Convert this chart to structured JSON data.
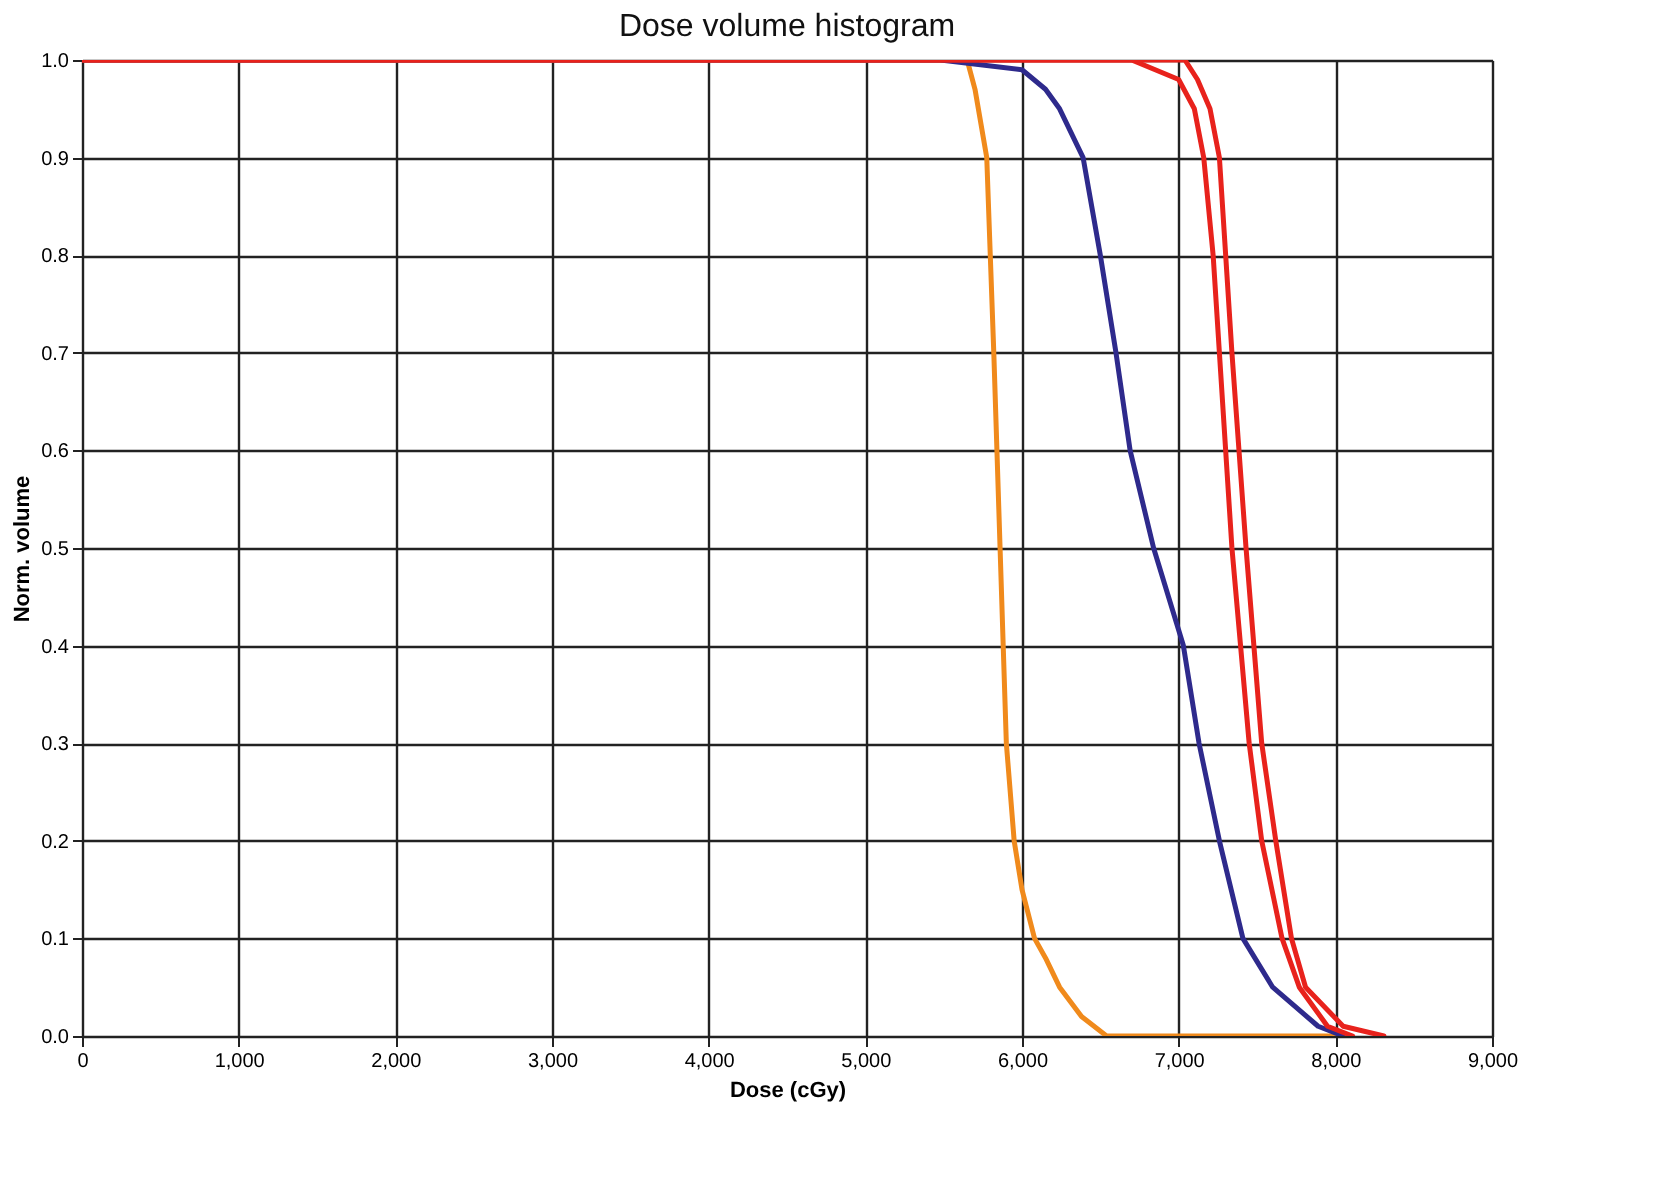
{
  "chart_data": {
    "type": "line",
    "title": "Dose volume histogram",
    "xlabel": "Dose (cGy)",
    "ylabel": "Norm. volume",
    "xlim": [
      0,
      9000
    ],
    "ylim": [
      0,
      1
    ],
    "xticks": [
      {
        "value": 0,
        "label": "0"
      },
      {
        "value": 1000,
        "label": "1,000"
      },
      {
        "value": 2000,
        "label": "2,000"
      },
      {
        "value": 3000,
        "label": "3,000"
      },
      {
        "value": 4000,
        "label": "4,000"
      },
      {
        "value": 5000,
        "label": "5,000"
      },
      {
        "value": 6000,
        "label": "6,000"
      },
      {
        "value": 7000,
        "label": "7,000"
      },
      {
        "value": 8000,
        "label": "8,000"
      },
      {
        "value": 9000,
        "label": "9,000"
      }
    ],
    "yticks": [
      {
        "value": 0,
        "label": "0.0"
      },
      0.1,
      0.2,
      0.3,
      0.4,
      0.5,
      0.6,
      0.7,
      0.8,
      0.9,
      {
        "value": 1,
        "label": "1.0"
      }
    ],
    "grid": true,
    "legend": false,
    "marker": "none",
    "line_style": "solid",
    "series": [
      {
        "color": "#f08a1c",
        "x": [
          0,
          5650,
          5700,
          5775,
          5820,
          5860,
          5900,
          5950,
          6000,
          6080,
          6150,
          6240,
          6380,
          6540,
          8000
        ],
        "values": [
          1,
          1,
          0.97,
          0.9,
          0.7,
          0.5,
          0.3,
          0.2,
          0.15,
          0.1,
          0.08,
          0.05,
          0.02,
          0,
          0
        ]
      },
      {
        "color": "#2e2a8c",
        "x": [
          0,
          5480,
          6000,
          6150,
          6240,
          6390,
          6500,
          6600,
          6690,
          6840,
          7030,
          7130,
          7260,
          7410,
          7600,
          7890,
          8050
        ],
        "values": [
          1,
          1,
          0.99,
          0.97,
          0.95,
          0.9,
          0.8,
          0.7,
          0.6,
          0.5,
          0.4,
          0.3,
          0.2,
          0.1,
          0.05,
          0.01,
          0
        ]
      },
      {
        "color": "#e8221c",
        "x": [
          0,
          6700,
          7000,
          7100,
          7160,
          7220,
          7260,
          7340,
          7450,
          7530,
          7660,
          7770,
          7950,
          8110
        ],
        "values": [
          1,
          1,
          0.98,
          0.95,
          0.9,
          0.8,
          0.7,
          0.5,
          0.3,
          0.2,
          0.1,
          0.05,
          0.01,
          0
        ]
      },
      {
        "color": "#e8221c",
        "x": [
          0,
          7040,
          7120,
          7200,
          7260,
          7300,
          7340,
          7430,
          7530,
          7620,
          7720,
          7810,
          8050,
          8310
        ],
        "values": [
          1,
          1,
          0.98,
          0.95,
          0.9,
          0.8,
          0.7,
          0.5,
          0.3,
          0.2,
          0.1,
          0.05,
          0.01,
          0
        ]
      }
    ]
  }
}
